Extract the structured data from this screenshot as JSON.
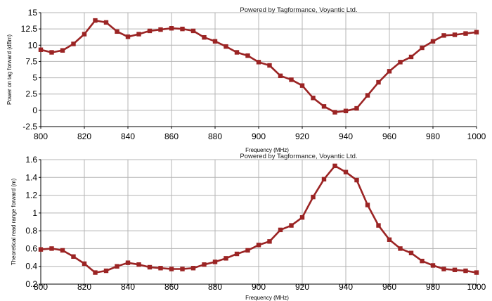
{
  "chart_data": [
    {
      "type": "line",
      "watermark": "Powered by Tagformance, Voyantic Ltd.",
      "xlabel": "Frequency (MHz)",
      "ylabel": "Power on tag forward (dBm)",
      "xlim": [
        800,
        1000
      ],
      "ylim": [
        -2.5,
        15
      ],
      "xticks": [
        "800",
        "820",
        "840",
        "860",
        "880",
        "900",
        "920",
        "940",
        "960",
        "980",
        "1000"
      ],
      "yticks": [
        "-2.5",
        "0",
        "2.5",
        "5",
        "7.5",
        "10",
        "12.5",
        "15"
      ],
      "grid": true,
      "color": "#9b2424",
      "x": [
        800,
        805,
        810,
        815,
        820,
        825,
        830,
        835,
        840,
        845,
        850,
        855,
        860,
        865,
        870,
        875,
        880,
        885,
        890,
        895,
        900,
        905,
        910,
        915,
        920,
        925,
        930,
        935,
        940,
        945,
        950,
        955,
        960,
        965,
        970,
        975,
        980,
        985,
        990,
        995,
        1000
      ],
      "series": [
        {
          "values": [
            9.3,
            8.9,
            9.2,
            10.2,
            11.7,
            13.8,
            13.5,
            12.1,
            11.3,
            11.7,
            12.2,
            12.4,
            12.6,
            12.5,
            12.2,
            11.2,
            10.6,
            9.8,
            8.9,
            8.4,
            7.4,
            6.9,
            5.3,
            4.7,
            3.8,
            1.9,
            0.6,
            -0.3,
            -0.1,
            0.3,
            2.3,
            4.3,
            6.0,
            7.4,
            8.2,
            9.6,
            10.6,
            11.5,
            11.6,
            11.8,
            12.0
          ]
        }
      ]
    },
    {
      "type": "line",
      "watermark": "Powered by Tagformance, Voyantic Ltd.",
      "xlabel": "Frequency (MHz)",
      "ylabel": "Theoretical read range forward (m)",
      "xlim": [
        800,
        1000
      ],
      "ylim": [
        0.2,
        1.6
      ],
      "xticks": [
        "800",
        "820",
        "840",
        "860",
        "880",
        "900",
        "920",
        "940",
        "960",
        "980",
        "1000"
      ],
      "yticks": [
        "0.2",
        "0.4",
        "0.6",
        "0.8",
        "1",
        "1.2",
        "1.4",
        "1.6"
      ],
      "grid": true,
      "color": "#9b2424",
      "x": [
        800,
        805,
        810,
        815,
        820,
        825,
        830,
        835,
        840,
        845,
        850,
        855,
        860,
        865,
        870,
        875,
        880,
        885,
        890,
        895,
        900,
        905,
        910,
        915,
        920,
        925,
        930,
        935,
        940,
        945,
        950,
        955,
        960,
        965,
        970,
        975,
        980,
        985,
        990,
        995,
        1000
      ],
      "series": [
        {
          "values": [
            0.59,
            0.6,
            0.58,
            0.51,
            0.43,
            0.33,
            0.35,
            0.4,
            0.44,
            0.42,
            0.39,
            0.38,
            0.37,
            0.37,
            0.38,
            0.42,
            0.45,
            0.49,
            0.54,
            0.58,
            0.64,
            0.68,
            0.81,
            0.86,
            0.95,
            1.18,
            1.38,
            1.53,
            1.46,
            1.37,
            1.09,
            0.86,
            0.7,
            0.6,
            0.55,
            0.46,
            0.41,
            0.37,
            0.36,
            0.35,
            0.33
          ]
        }
      ]
    }
  ]
}
